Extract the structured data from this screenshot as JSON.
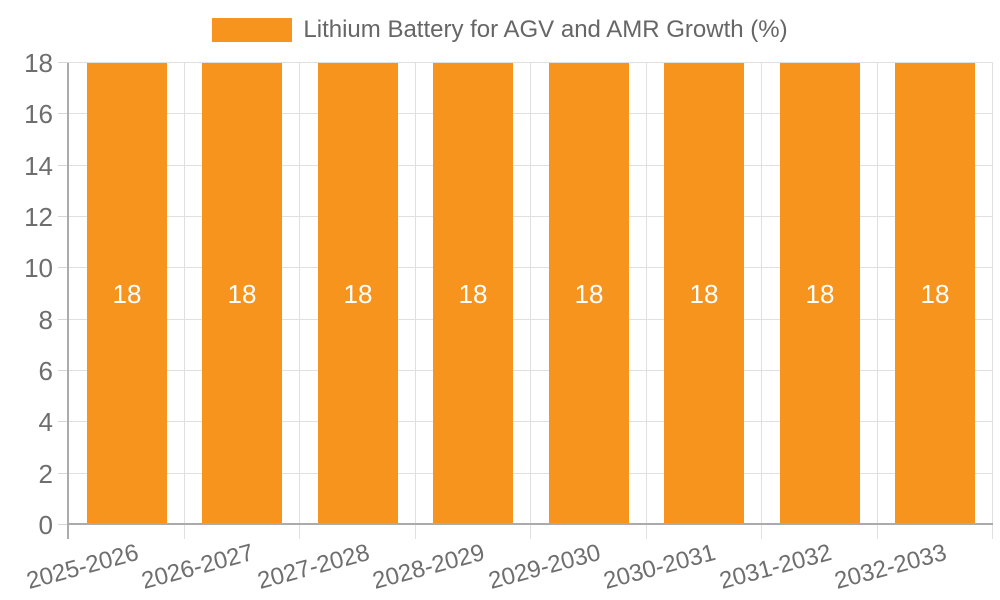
{
  "legend": {
    "label": "Lithium Battery for AGV and AMR Growth (%)"
  },
  "chart_data": {
    "type": "bar",
    "title": "Lithium Battery for AGV and AMR Growth (%)",
    "categories": [
      "2025-2026",
      "2026-2027",
      "2027-2028",
      "2028-2029",
      "2029-2030",
      "2030-2031",
      "2031-2032",
      "2032-2033"
    ],
    "values": [
      18,
      18,
      18,
      18,
      18,
      18,
      18,
      18
    ],
    "bar_value_labels": [
      "18",
      "18",
      "18",
      "18",
      "18",
      "18",
      "18",
      "18"
    ],
    "xlabel": "",
    "ylabel": "",
    "ylim": [
      0,
      18
    ],
    "yticks": [
      0,
      2,
      4,
      6,
      8,
      10,
      12,
      14,
      16,
      18
    ],
    "grid": true,
    "legend_position": "top-center",
    "x_label_rotation_deg": -15,
    "colors": {
      "bar": "#F7941E",
      "gridline": "#E0E0E0",
      "tick": "#D6D6D6",
      "axis_line": "#ABABAB",
      "tick_text": "#6E6E6E",
      "legend_text": "#666666",
      "value_label_text": "#FFFFFF",
      "background": "#FFFFFF"
    }
  }
}
